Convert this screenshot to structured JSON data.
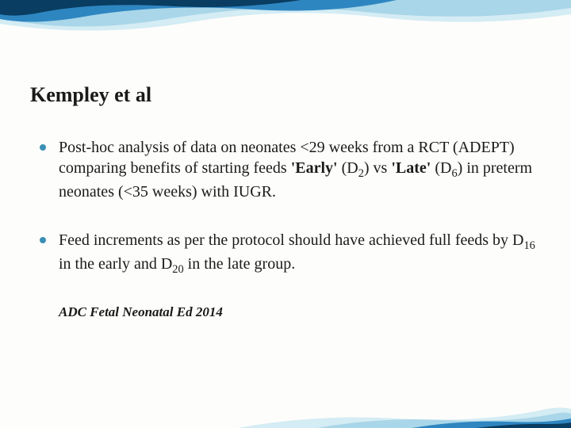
{
  "slide": {
    "title": "Kempley et al",
    "bullets": [
      {
        "segments": [
          {
            "t": "Post-hoc analysis of data on neonates <29 weeks from a RCT (ADEPT) comparing benefits of starting feeds "
          },
          {
            "t": "'Early'",
            "bold": true
          },
          {
            "t": " (D"
          },
          {
            "t": "2",
            "sub": true
          },
          {
            "t": ") vs "
          },
          {
            "t": "'Late'",
            "bold": true
          },
          {
            "t": " (D"
          },
          {
            "t": "6",
            "sub": true
          },
          {
            "t": ") in preterm neonates (<35 weeks) with IUGR."
          }
        ]
      },
      {
        "segments": [
          {
            "t": "Feed increments as per the protocol should have achieved full feeds by D"
          },
          {
            "t": "16",
            "sub": true
          },
          {
            "t": " in the early and D"
          },
          {
            "t": "20",
            "sub": true
          },
          {
            "t": " in the late group."
          }
        ]
      }
    ],
    "citation": "ADC Fetal Neonatal Ed 2014"
  },
  "style": {
    "background_color": "#fdfdfb",
    "title_color": "#1a1a1a",
    "title_fontsize": 26,
    "body_fontsize": 20,
    "bullet_color": "#3a8fb7",
    "wave_colors": {
      "dark": "#0a3d62",
      "mid": "#2e86c1",
      "light": "#a9d6e8",
      "pale": "#d4ecf4"
    },
    "citation_fontsize": 17
  }
}
